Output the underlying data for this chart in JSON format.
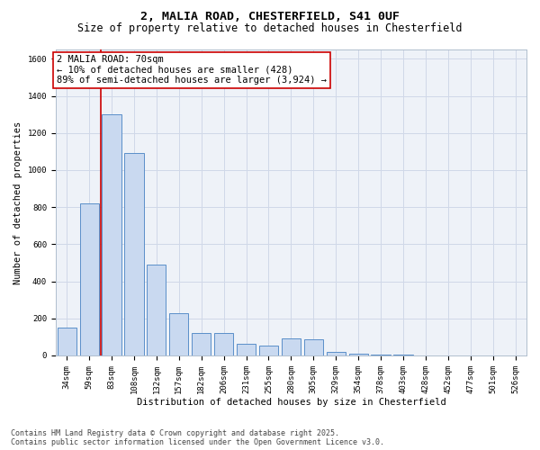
{
  "title_line1": "2, MALIA ROAD, CHESTERFIELD, S41 0UF",
  "title_line2": "Size of property relative to detached houses in Chesterfield",
  "xlabel": "Distribution of detached houses by size in Chesterfield",
  "ylabel": "Number of detached properties",
  "categories": [
    "34sqm",
    "59sqm",
    "83sqm",
    "108sqm",
    "132sqm",
    "157sqm",
    "182sqm",
    "206sqm",
    "231sqm",
    "255sqm",
    "280sqm",
    "305sqm",
    "329sqm",
    "354sqm",
    "378sqm",
    "403sqm",
    "428sqm",
    "452sqm",
    "477sqm",
    "501sqm",
    "526sqm"
  ],
  "values": [
    150,
    820,
    1300,
    1090,
    490,
    230,
    120,
    120,
    65,
    55,
    90,
    85,
    20,
    8,
    4,
    3,
    2,
    2,
    1,
    1,
    1
  ],
  "bar_color": "#c9d9f0",
  "bar_edge_color": "#5b8fc9",
  "grid_color": "#d0d8e8",
  "background_color": "#eef2f8",
  "vline_x_index": 1.5,
  "vline_color": "#cc0000",
  "annotation_text": "2 MALIA ROAD: 70sqm\n← 10% of detached houses are smaller (428)\n89% of semi-detached houses are larger (3,924) →",
  "annotation_box_color": "white",
  "annotation_box_edgecolor": "#cc0000",
  "ylim": [
    0,
    1650
  ],
  "yticks": [
    0,
    200,
    400,
    600,
    800,
    1000,
    1200,
    1400,
    1600
  ],
  "footer_text": "Contains HM Land Registry data © Crown copyright and database right 2025.\nContains public sector information licensed under the Open Government Licence v3.0.",
  "title_fontsize": 9.5,
  "subtitle_fontsize": 8.5,
  "axis_label_fontsize": 7.5,
  "tick_fontsize": 6.5,
  "annotation_fontsize": 7.5,
  "footer_fontsize": 6.0
}
